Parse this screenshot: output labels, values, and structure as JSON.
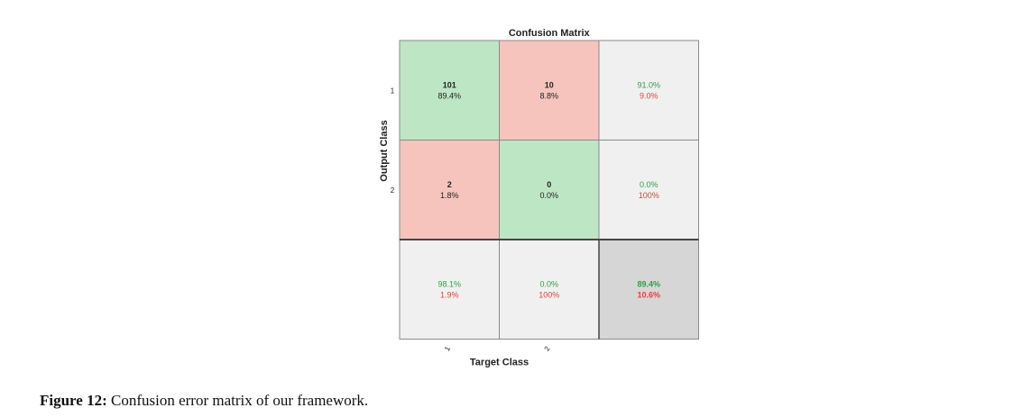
{
  "chart_data": {
    "type": "heatmap",
    "title": "Confusion Matrix",
    "xlabel": "Target Class",
    "ylabel": "Output Class",
    "x_tick_labels": [
      "1",
      "2"
    ],
    "y_tick_labels": [
      "1",
      "2"
    ],
    "cells": [
      [
        {
          "count": "101",
          "pct": "89.4%"
        },
        {
          "count": "10",
          "pct": "8.8%"
        }
      ],
      [
        {
          "count": "2",
          "pct": "1.8%"
        },
        {
          "count": "0",
          "pct": "0.0%"
        }
      ]
    ],
    "row_summary": [
      {
        "correct": "91.0%",
        "error": "9.0%"
      },
      {
        "correct": "0.0%",
        "error": "100%"
      }
    ],
    "col_summary": [
      {
        "correct": "98.1%",
        "error": "1.9%"
      },
      {
        "correct": "0.0%",
        "error": "100%"
      }
    ],
    "overall": {
      "correct": "89.4%",
      "error": "10.6%"
    },
    "colors": {
      "diagonal": "#bde6c5",
      "off_diagonal": "#f6c4bc",
      "summary": "#f0f0f0",
      "overall": "#d6d6d6",
      "correct_text": "#2ea043",
      "error_text": "#e0453a"
    }
  },
  "caption": {
    "label": "Figure 12:",
    "text": "Confusion error matrix of our framework."
  }
}
